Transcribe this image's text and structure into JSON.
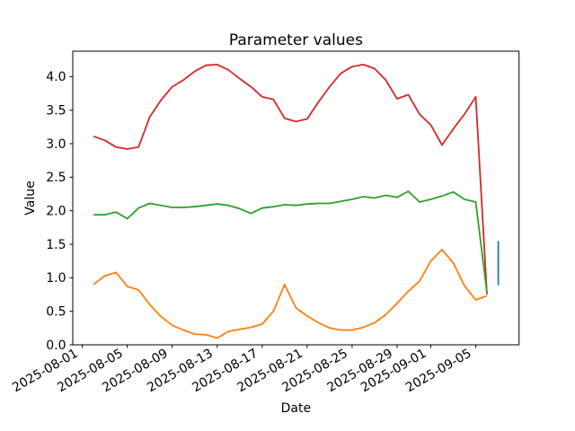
{
  "figure": {
    "background": "#ffffff"
  },
  "chart_data": {
    "type": "line",
    "title": "Parameter values",
    "xlabel": "Date",
    "ylabel": "Value",
    "grid": false,
    "legend": false,
    "axis_color": "#000000",
    "text_color": "#000000",
    "x_origin": "2025-08-01",
    "xlim_days": [
      -0.85,
      38.85
    ],
    "ylim": [
      0,
      4.38
    ],
    "y_tick_labels": [
      "0.0",
      "0.5",
      "1.0",
      "1.5",
      "2.0",
      "2.5",
      "3.0",
      "3.5",
      "4.0"
    ],
    "x_tick_labels": [
      "2025-08-01",
      "2025-08-05",
      "2025-08-09",
      "2025-08-13",
      "2025-08-17",
      "2025-08-21",
      "2025-08-25",
      "2025-08-29",
      "2025-09-01",
      "2025-09-05"
    ],
    "x_dates": [
      "2025-08-02",
      "2025-08-03",
      "2025-08-04",
      "2025-08-05",
      "2025-08-06",
      "2025-08-07",
      "2025-08-08",
      "2025-08-09",
      "2025-08-10",
      "2025-08-11",
      "2025-08-12",
      "2025-08-13",
      "2025-08-14",
      "2025-08-15",
      "2025-08-16",
      "2025-08-17",
      "2025-08-18",
      "2025-08-19",
      "2025-08-20",
      "2025-08-21",
      "2025-08-22",
      "2025-08-23",
      "2025-08-24",
      "2025-08-25",
      "2025-08-26",
      "2025-08-27",
      "2025-08-28",
      "2025-08-29",
      "2025-08-30",
      "2025-08-31",
      "2025-09-01",
      "2025-09-02",
      "2025-09-03",
      "2025-09-04",
      "2025-09-05",
      "2025-09-06"
    ],
    "series": [
      {
        "name": "red-line",
        "color": "#d62728",
        "values": [
          3.11,
          3.05,
          2.95,
          2.92,
          2.95,
          3.4,
          3.65,
          3.85,
          3.95,
          4.08,
          4.17,
          4.18,
          4.1,
          3.97,
          3.85,
          3.7,
          3.66,
          3.38,
          3.33,
          3.37,
          3.62,
          3.85,
          4.05,
          4.15,
          4.18,
          4.12,
          3.95,
          3.67,
          3.73,
          3.44,
          3.28,
          2.98,
          3.22,
          3.44,
          3.7,
          0.75
        ]
      },
      {
        "name": "green-line",
        "color": "#2ca02c",
        "values": [
          1.94,
          1.94,
          1.98,
          1.88,
          2.04,
          2.11,
          2.08,
          2.05,
          2.05,
          2.06,
          2.08,
          2.1,
          2.08,
          2.03,
          1.96,
          2.04,
          2.06,
          2.09,
          2.08,
          2.1,
          2.11,
          2.11,
          2.14,
          2.17,
          2.21,
          2.19,
          2.23,
          2.2,
          2.29,
          2.13,
          2.17,
          2.22,
          2.28,
          2.17,
          2.13,
          0.78
        ]
      },
      {
        "name": "orange-line",
        "color": "#ff7f0e",
        "values": [
          0.9,
          1.03,
          1.08,
          0.87,
          0.82,
          0.6,
          0.42,
          0.29,
          0.22,
          0.16,
          0.15,
          0.1,
          0.2,
          0.23,
          0.26,
          0.31,
          0.5,
          0.9,
          0.55,
          0.43,
          0.33,
          0.25,
          0.22,
          0.22,
          0.26,
          0.33,
          0.45,
          0.62,
          0.8,
          0.95,
          1.25,
          1.42,
          1.22,
          0.88,
          0.67,
          0.73
        ]
      },
      {
        "name": "blue-vertical-segment",
        "color": "#1f77b4",
        "points": [
          {
            "date": "2025-09-07",
            "value": 0.89
          },
          {
            "date": "2025-09-07",
            "value": 1.55
          }
        ]
      }
    ]
  }
}
